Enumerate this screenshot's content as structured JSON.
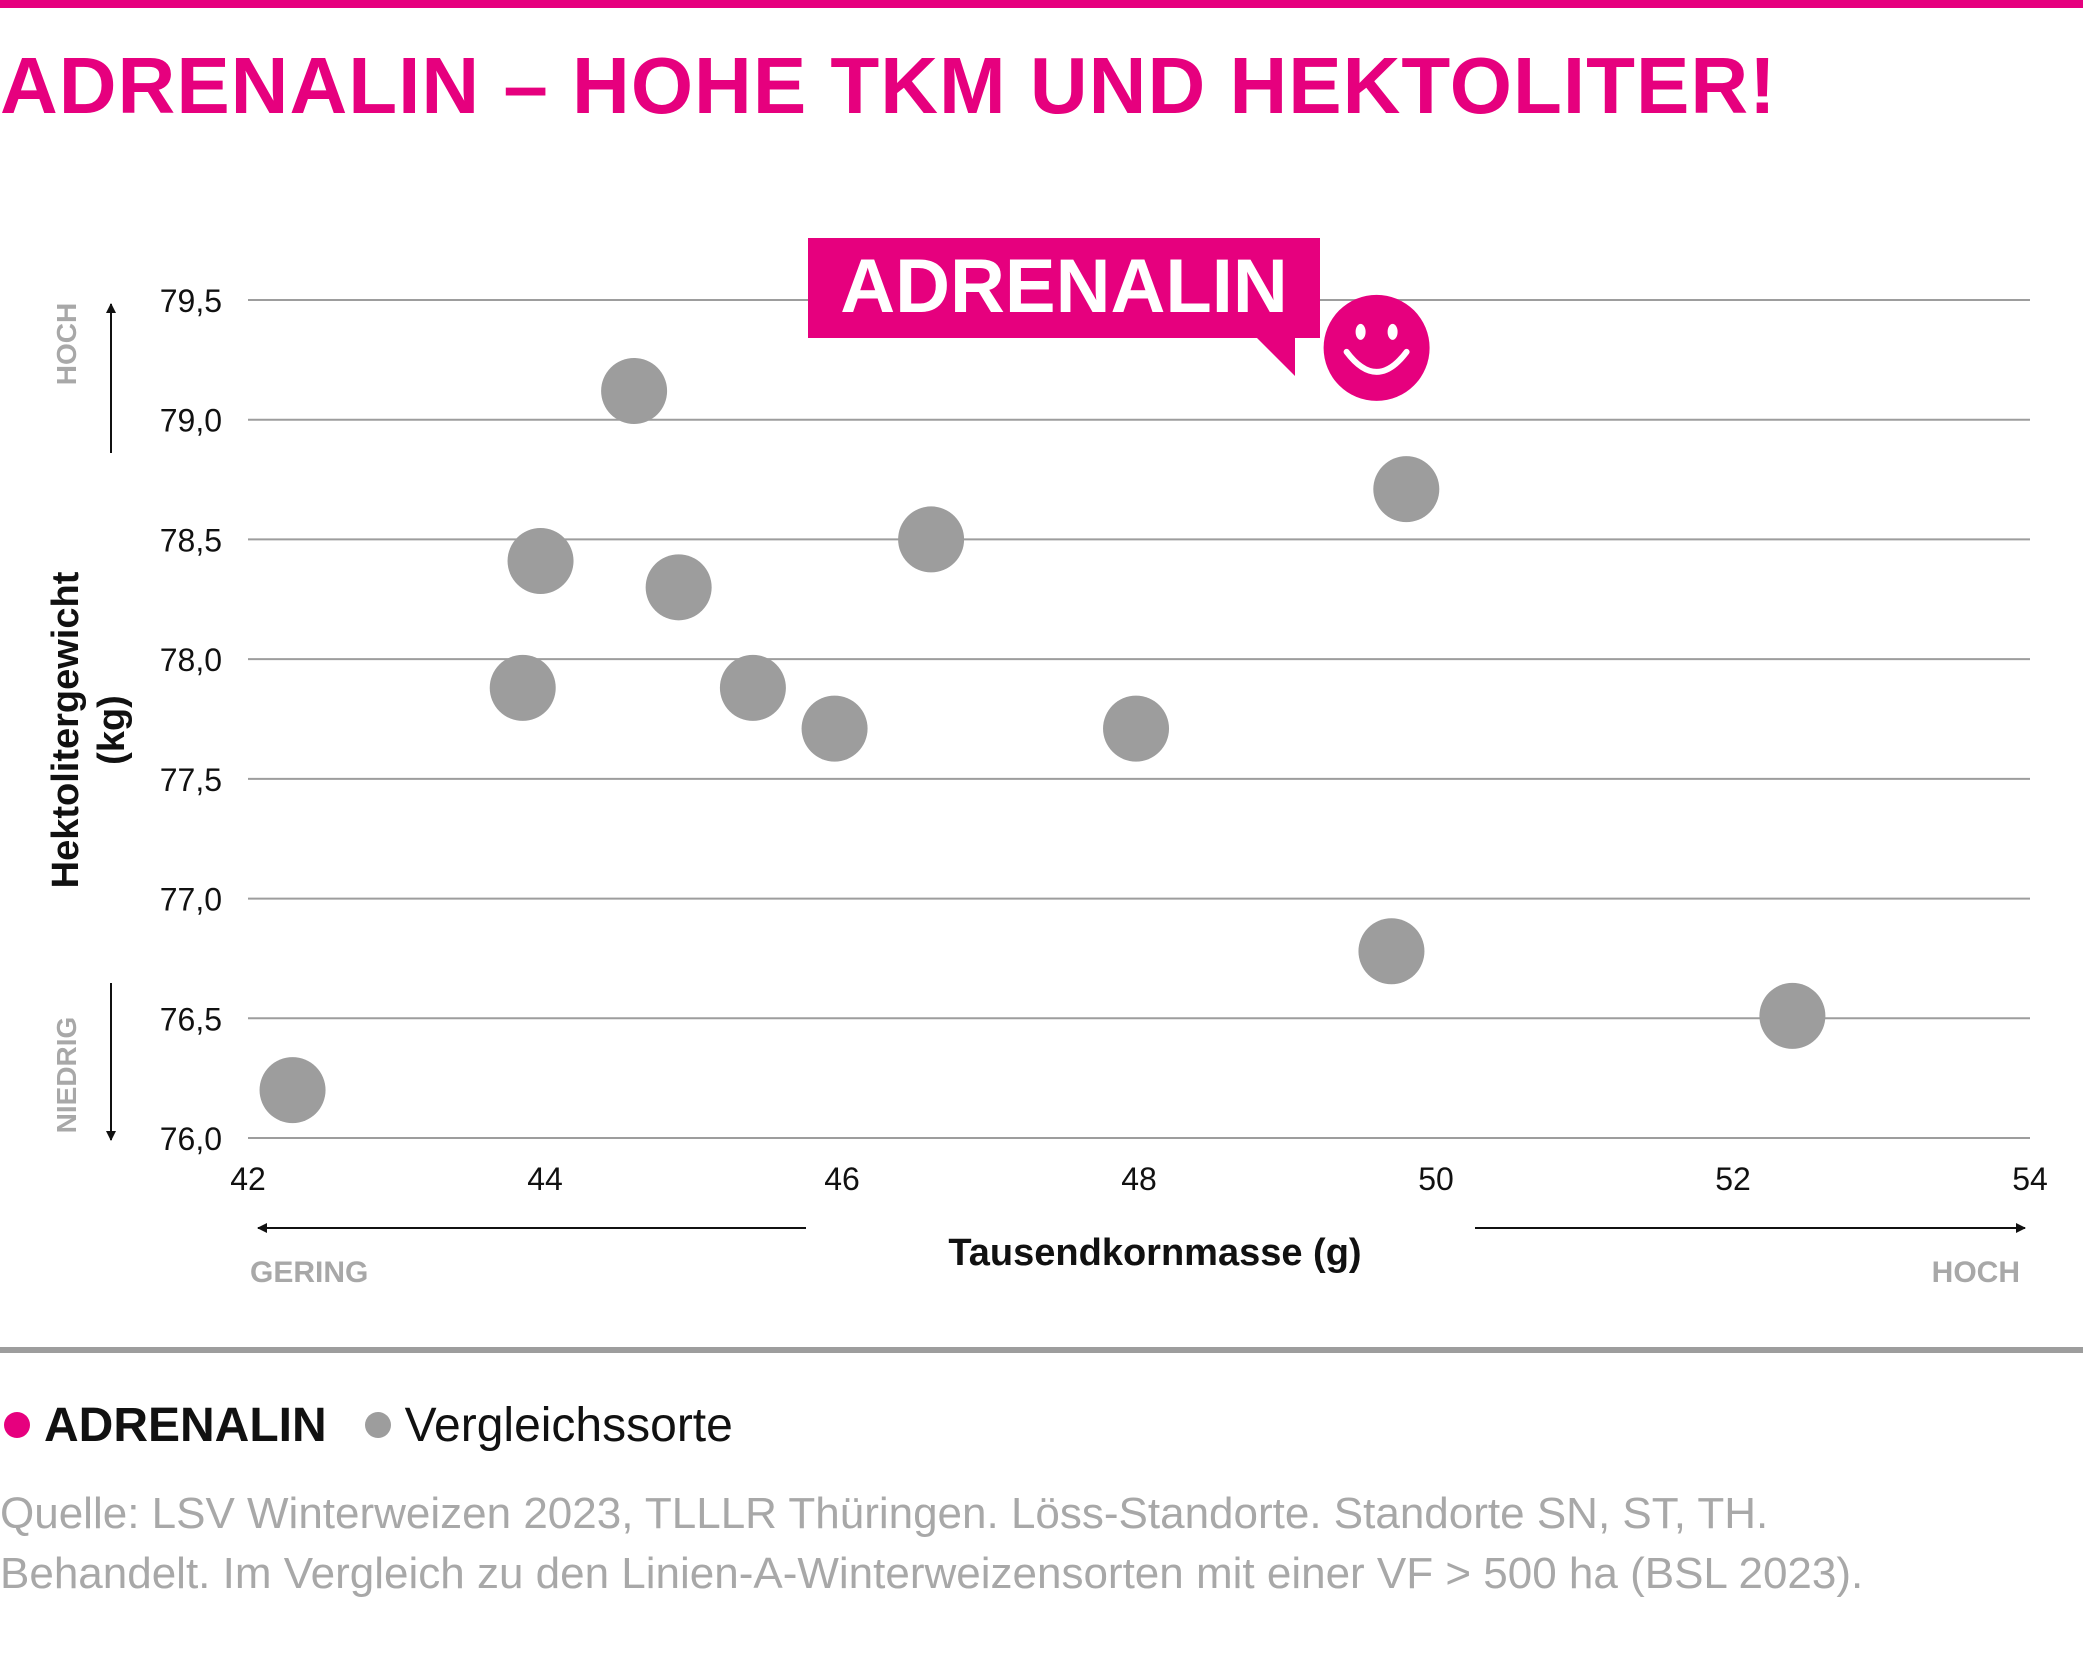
{
  "title": "ADRENALIN – HOHE TKM UND HEKTOLITER!",
  "colors": {
    "accent": "#e6007e",
    "comparison": "#9d9d9d",
    "grid": "#9d9d9d",
    "text": "#111111",
    "muted": "#a8a8a8"
  },
  "callout": {
    "label": "ADRENALIN",
    "icon": "smiley-face-icon"
  },
  "chart_data": {
    "type": "scatter",
    "xlabel": "Tausendkornmasse (g)",
    "ylabel": "Hektolitergewicht (kg)",
    "xlim": [
      42,
      54
    ],
    "ylim": [
      76.0,
      79.5
    ],
    "xticks": [
      42,
      44,
      46,
      48,
      50,
      52,
      54
    ],
    "xtick_labels": [
      "42",
      "44",
      "46",
      "48",
      "50",
      "52",
      "54"
    ],
    "yticks": [
      76.0,
      76.5,
      77.0,
      77.5,
      78.0,
      78.5,
      79.0,
      79.5
    ],
    "ytick_labels": [
      "76,0",
      "76,5",
      "77,0",
      "77,5",
      "78,0",
      "78,5",
      "79,0",
      "79,5"
    ],
    "grid": true,
    "x_direction_labels": {
      "low": "GERING",
      "high": "HOCH"
    },
    "y_direction_labels": {
      "low": "NIEDRIG",
      "high": "HOCH"
    },
    "series": [
      {
        "name": "Vergleichssorte",
        "color": "#9d9d9d",
        "points": [
          {
            "x": 42.3,
            "y": 76.2
          },
          {
            "x": 43.85,
            "y": 77.88
          },
          {
            "x": 43.97,
            "y": 78.41
          },
          {
            "x": 44.6,
            "y": 79.12
          },
          {
            "x": 44.9,
            "y": 78.3
          },
          {
            "x": 45.4,
            "y": 77.88
          },
          {
            "x": 45.95,
            "y": 77.71
          },
          {
            "x": 46.6,
            "y": 78.5
          },
          {
            "x": 47.98,
            "y": 77.71
          },
          {
            "x": 49.7,
            "y": 76.78
          },
          {
            "x": 49.8,
            "y": 78.71
          },
          {
            "x": 52.4,
            "y": 76.51
          }
        ]
      },
      {
        "name": "ADRENALIN",
        "color": "#e6007e",
        "points": [
          {
            "x": 49.6,
            "y": 79.3
          }
        ]
      }
    ]
  },
  "legend": {
    "items": [
      {
        "label": "ADRENALIN",
        "color": "#e6007e"
      },
      {
        "label": "Vergleichssorte",
        "color": "#9d9d9d"
      }
    ]
  },
  "source": {
    "line1": "Quelle: LSV Winterweizen 2023, TLLLR Thüringen. Löss-Standorte. Standorte SN, ST, TH.",
    "line2": "Behandelt. Im Vergleich zu den Linien-A-Winterweizensorten mit einer VF > 500 ha (BSL 2023)."
  }
}
